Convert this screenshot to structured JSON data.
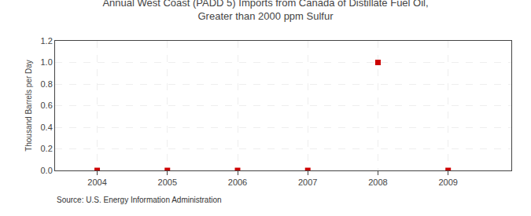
{
  "chart_data": {
    "type": "scatter",
    "title": "Annual West Coast (PADD 5) Imports from Canada of Distillate Fuel Oil, Greater than 2000 ppm Sulfur",
    "ylabel": "Thousand Barrels per Day",
    "source": "Source: U.S. Energy Information Administration",
    "x": [
      2004,
      2005,
      2006,
      2007,
      2008,
      2009
    ],
    "values": [
      0.0,
      0.0,
      0.0,
      0.0,
      1.0,
      0.0
    ],
    "color": "#CC0000",
    "marker": "square",
    "xlim": [
      2003.4,
      2009.9
    ],
    "ylim": [
      0.0,
      1.2
    ],
    "xticks": [
      2004,
      2005,
      2006,
      2007,
      2008,
      2009
    ],
    "yticks": [
      {
        "value": 0.0,
        "label": "0.0"
      },
      0.2,
      0.4,
      0.6,
      0.8,
      {
        "value": 1.0,
        "label": "1.0"
      },
      1.2
    ],
    "grid": true
  }
}
